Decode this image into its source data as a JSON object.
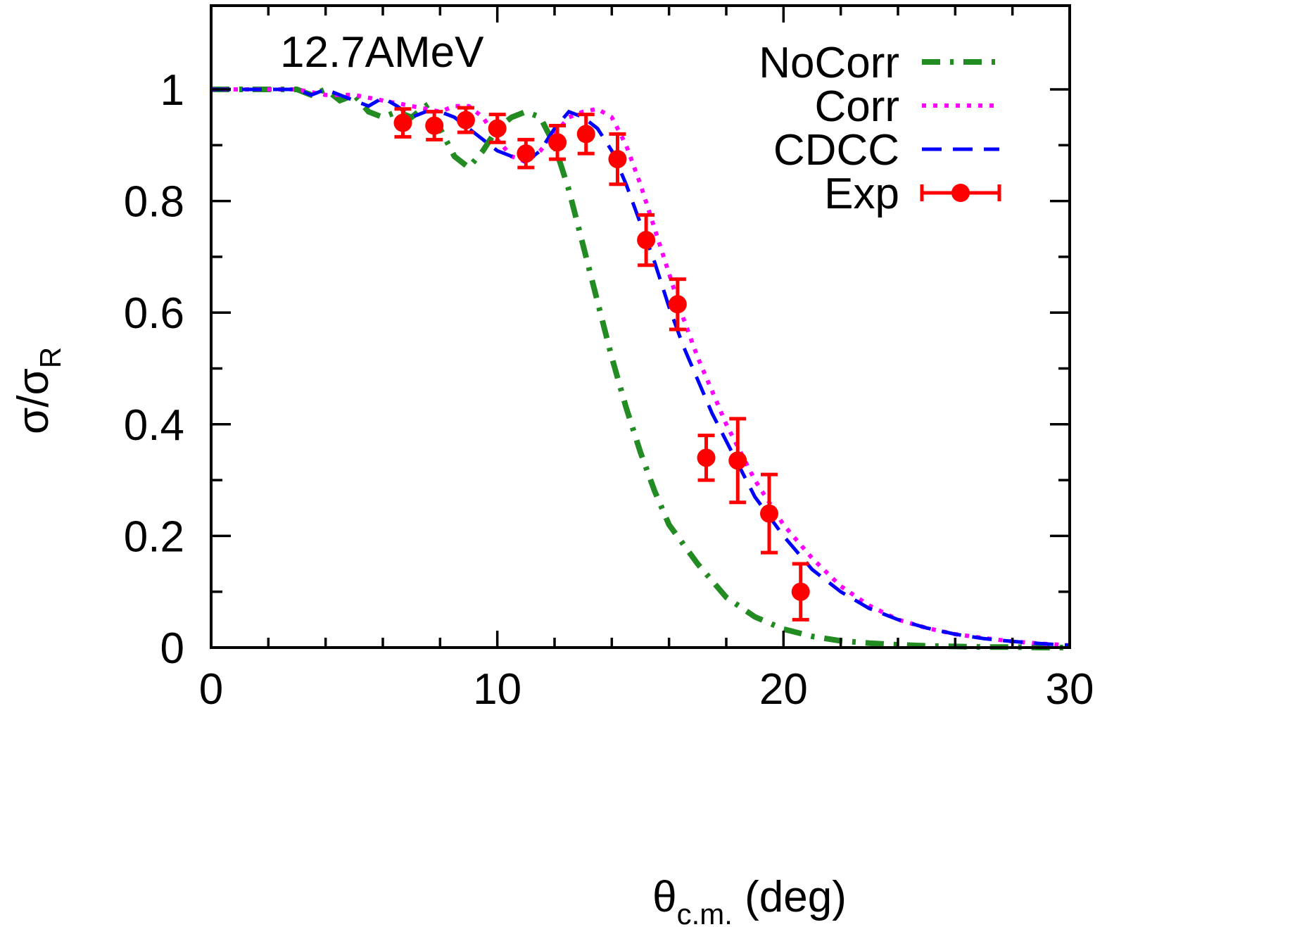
{
  "chart_data": {
    "type": "line",
    "annotation": "12.7AMeV",
    "xlabel": {
      "symbol": "θ",
      "sub": "c.m.",
      "unit": " (deg)"
    },
    "ylabel": {
      "symbol": "σ/σ",
      "sub": "R"
    },
    "xlim": [
      0,
      30
    ],
    "ylim": [
      0,
      1.15
    ],
    "x_ticks": [
      0,
      10,
      20,
      30
    ],
    "x_tick_labels": [
      "0",
      "10",
      "20",
      "30"
    ],
    "x_minor_ticks": [
      2,
      4,
      6,
      8,
      12,
      14,
      16,
      18,
      22,
      24,
      26,
      28
    ],
    "y_ticks": [
      0,
      0.2,
      0.4,
      0.6,
      0.8,
      1
    ],
    "y_tick_labels": [
      "0",
      "0.2",
      "0.4",
      "0.6",
      "0.8",
      "1"
    ],
    "y_minor_ticks": [
      0.1,
      0.3,
      0.5,
      0.7,
      0.9
    ],
    "grid": false,
    "legend_position": "top-right",
    "series": [
      {
        "name": "NoCorr",
        "style": "dash-dot",
        "color": "#228b22",
        "x": [
          0,
          1,
          2,
          3,
          3.5,
          4,
          4.5,
          5,
          5.5,
          6,
          6.5,
          7,
          7.5,
          8,
          8.5,
          9,
          9.5,
          10,
          10.5,
          11,
          11.5,
          12,
          12.5,
          13,
          13.5,
          14,
          14.5,
          15,
          15.5,
          16,
          17,
          18,
          19,
          20,
          21,
          22,
          23,
          24,
          25,
          26,
          27,
          28,
          29,
          30
        ],
        "y": [
          1.0,
          1.0,
          1.0,
          1.0,
          0.99,
          1.0,
          0.98,
          0.99,
          0.96,
          0.95,
          0.96,
          0.95,
          0.97,
          0.93,
          0.88,
          0.86,
          0.89,
          0.93,
          0.95,
          0.96,
          0.95,
          0.9,
          0.82,
          0.72,
          0.62,
          0.52,
          0.43,
          0.35,
          0.28,
          0.22,
          0.15,
          0.09,
          0.055,
          0.033,
          0.02,
          0.012,
          0.008,
          0.005,
          0.003,
          0.002,
          0.001,
          0.001,
          0.0,
          0.0
        ]
      },
      {
        "name": "Corr",
        "style": "dotted",
        "color": "#ff00ff",
        "x": [
          0,
          1,
          2,
          3,
          4,
          5,
          6,
          7,
          8,
          8.5,
          9,
          9.5,
          10,
          10.5,
          11,
          11.5,
          12,
          12.5,
          13,
          13.5,
          14,
          14.5,
          15,
          15.5,
          16,
          16.5,
          17,
          17.5,
          18,
          18.5,
          19,
          20,
          21,
          22,
          23,
          24,
          25,
          26,
          27,
          28,
          29,
          30
        ],
        "y": [
          1.0,
          1.0,
          1.0,
          1.0,
          0.99,
          0.99,
          0.98,
          0.97,
          0.96,
          0.97,
          0.97,
          0.95,
          0.91,
          0.88,
          0.87,
          0.89,
          0.92,
          0.95,
          0.96,
          0.965,
          0.95,
          0.9,
          0.83,
          0.75,
          0.67,
          0.59,
          0.52,
          0.46,
          0.4,
          0.35,
          0.3,
          0.22,
          0.16,
          0.11,
          0.075,
          0.05,
          0.035,
          0.024,
          0.017,
          0.011,
          0.007,
          0.004
        ]
      },
      {
        "name": "CDCC",
        "style": "dashed",
        "color": "#0000ff",
        "x": [
          0,
          1,
          2,
          3,
          3.5,
          4,
          4.5,
          5,
          5.5,
          6,
          6.5,
          7,
          7.5,
          8,
          8.5,
          9,
          9.5,
          10,
          10.5,
          11,
          11.5,
          12,
          12.5,
          13,
          13.5,
          14,
          14.5,
          15,
          15.5,
          16,
          16.5,
          17,
          17.5,
          18,
          18.5,
          19,
          20,
          21,
          22,
          23,
          24,
          25,
          26,
          27,
          28,
          29,
          30
        ],
        "y": [
          1.0,
          1.0,
          1.0,
          1.0,
          0.99,
          1.0,
          0.99,
          0.98,
          0.97,
          0.985,
          0.97,
          0.95,
          0.96,
          0.96,
          0.95,
          0.93,
          0.91,
          0.89,
          0.88,
          0.87,
          0.89,
          0.93,
          0.96,
          0.95,
          0.93,
          0.89,
          0.83,
          0.76,
          0.69,
          0.61,
          0.54,
          0.48,
          0.42,
          0.37,
          0.32,
          0.27,
          0.2,
          0.14,
          0.1,
          0.07,
          0.05,
          0.035,
          0.024,
          0.016,
          0.011,
          0.007,
          0.004
        ]
      }
    ],
    "experimental": {
      "name": "Exp",
      "color": "#ff0000",
      "points": [
        {
          "x": 6.7,
          "y": 0.94,
          "err": 0.025
        },
        {
          "x": 7.8,
          "y": 0.935,
          "err": 0.025
        },
        {
          "x": 8.9,
          "y": 0.945,
          "err": 0.022
        },
        {
          "x": 10.0,
          "y": 0.93,
          "err": 0.025
        },
        {
          "x": 11.0,
          "y": 0.885,
          "err": 0.025
        },
        {
          "x": 12.1,
          "y": 0.905,
          "err": 0.03
        },
        {
          "x": 13.1,
          "y": 0.92,
          "err": 0.035
        },
        {
          "x": 14.2,
          "y": 0.875,
          "err": 0.045
        },
        {
          "x": 15.2,
          "y": 0.73,
          "err": 0.045
        },
        {
          "x": 16.3,
          "y": 0.615,
          "err": 0.045
        },
        {
          "x": 17.3,
          "y": 0.34,
          "err": 0.04
        },
        {
          "x": 18.4,
          "y": 0.335,
          "err": 0.075
        },
        {
          "x": 19.5,
          "y": 0.24,
          "err": 0.07
        },
        {
          "x": 20.6,
          "y": 0.1,
          "err": 0.05
        }
      ]
    }
  }
}
